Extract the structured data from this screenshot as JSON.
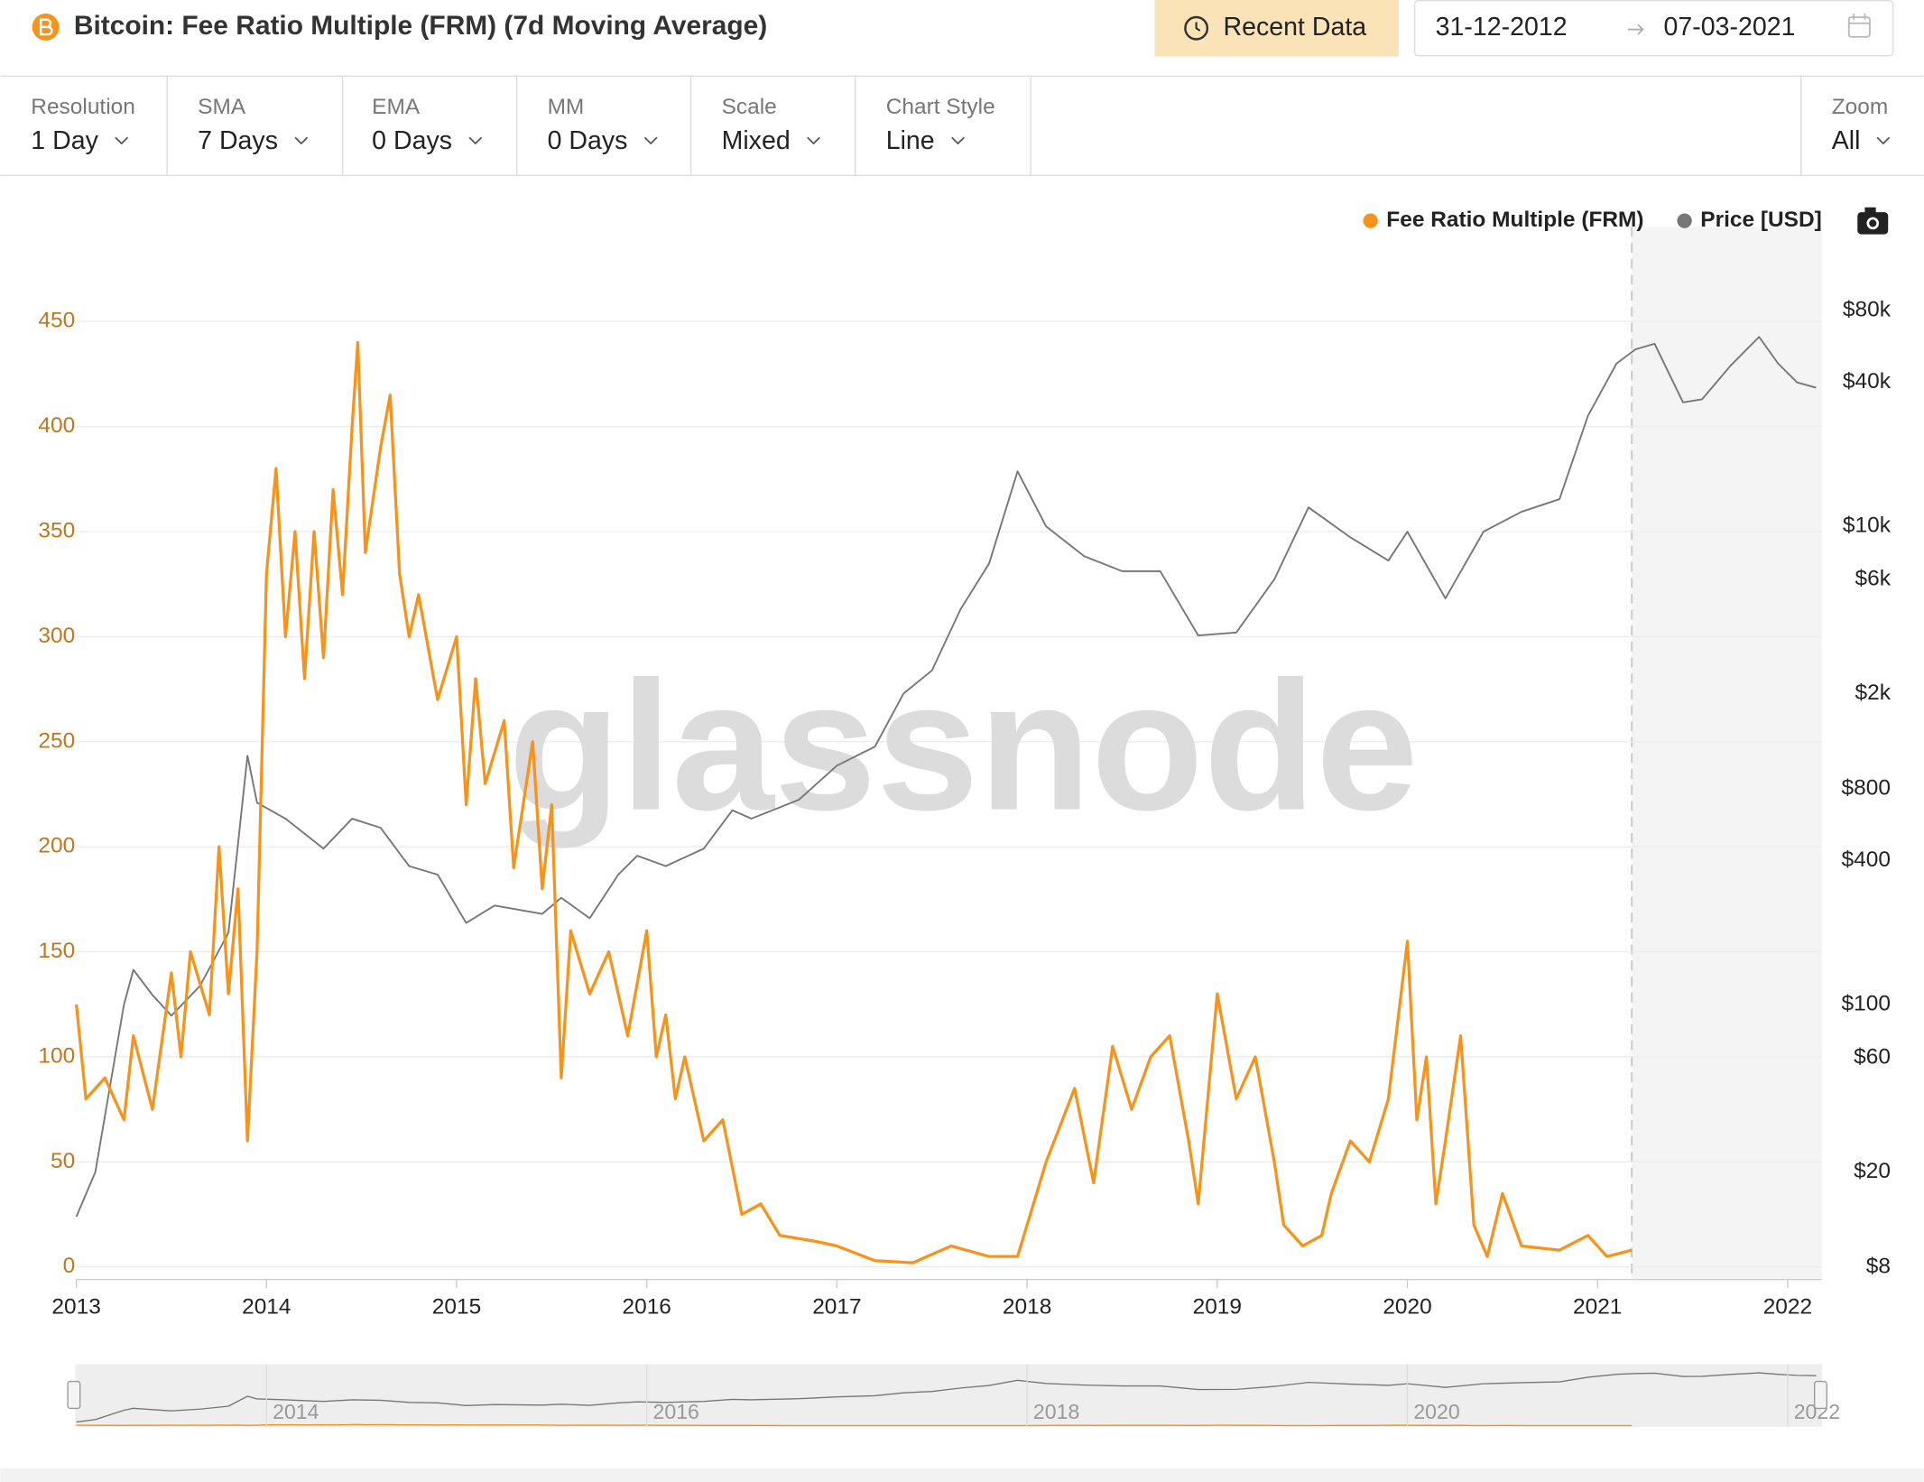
{
  "header": {
    "title": "Bitcoin: Fee Ratio Multiple (FRM) (7d Moving Average)",
    "recent_button": "Recent Data",
    "date_from": "31-12-2012",
    "date_to": "07-03-2021"
  },
  "controls": [
    {
      "label": "Resolution",
      "value": "1 Day"
    },
    {
      "label": "SMA",
      "value": "7 Days"
    },
    {
      "label": "EMA",
      "value": "0 Days"
    },
    {
      "label": "MM",
      "value": "0 Days"
    },
    {
      "label": "Scale",
      "value": "Mixed"
    },
    {
      "label": "Chart Style",
      "value": "Line"
    }
  ],
  "zoom": {
    "label": "Zoom",
    "value": "All"
  },
  "chart_data": {
    "type": "line",
    "watermark": "glassnode",
    "grid": true,
    "legend": "top-right",
    "xlim": [
      2013,
      2022.18
    ],
    "xticks": [
      2013,
      2014,
      2015,
      2016,
      2017,
      2018,
      2019,
      2020,
      2021,
      2022
    ],
    "ylim": [
      -6,
      495
    ],
    "yticks": [
      0,
      50,
      100,
      150,
      200,
      250,
      300,
      350,
      400,
      450
    ],
    "y2lim": [
      7.1,
      178600
    ],
    "y2log": true,
    "y2ticks": [
      {
        "value": 8,
        "label": "$8"
      },
      {
        "value": 20,
        "label": "$20"
      },
      {
        "value": 60,
        "label": "$60"
      },
      {
        "value": 100,
        "label": "$100"
      },
      {
        "value": 400,
        "label": "$400"
      },
      {
        "value": 800,
        "label": "$800"
      },
      {
        "value": 2000,
        "label": "$2k"
      },
      {
        "value": 6000,
        "label": "$6k"
      },
      {
        "value": 10000,
        "label": "$10k"
      },
      {
        "value": 40000,
        "label": "$40k"
      },
      {
        "value": 80000,
        "label": "$80k"
      }
    ],
    "series": [
      {
        "name": "Fee Ratio Multiple (FRM)",
        "color": "#f7931a",
        "x": [
          2013.0,
          2013.05,
          2013.15,
          2013.25,
          2013.3,
          2013.4,
          2013.5,
          2013.55,
          2013.6,
          2013.7,
          2013.75,
          2013.8,
          2013.85,
          2013.9,
          2013.95,
          2014.0,
          2014.05,
          2014.1,
          2014.15,
          2014.2,
          2014.25,
          2014.3,
          2014.35,
          2014.4,
          2014.45,
          2014.48,
          2014.52,
          2014.6,
          2014.65,
          2014.7,
          2014.75,
          2014.8,
          2014.9,
          2015.0,
          2015.05,
          2015.1,
          2015.15,
          2015.25,
          2015.3,
          2015.4,
          2015.45,
          2015.5,
          2015.55,
          2015.6,
          2015.7,
          2015.8,
          2015.9,
          2016.0,
          2016.05,
          2016.1,
          2016.15,
          2016.2,
          2016.3,
          2016.4,
          2016.5,
          2016.6,
          2016.7,
          2016.9,
          2017.0,
          2017.2,
          2017.4,
          2017.6,
          2017.8,
          2017.95,
          2018.1,
          2018.25,
          2018.35,
          2018.45,
          2018.55,
          2018.65,
          2018.75,
          2018.85,
          2018.9,
          2019.0,
          2019.1,
          2019.2,
          2019.3,
          2019.35,
          2019.45,
          2019.55,
          2019.6,
          2019.7,
          2019.8,
          2019.9,
          2020.0,
          2020.05,
          2020.1,
          2020.15,
          2020.2,
          2020.28,
          2020.35,
          2020.42,
          2020.5,
          2020.6,
          2020.8,
          2020.95,
          2021.05,
          2021.18
        ],
        "values": [
          125,
          80,
          90,
          70,
          110,
          75,
          140,
          100,
          150,
          120,
          200,
          130,
          180,
          60,
          150,
          330,
          380,
          300,
          350,
          280,
          350,
          290,
          370,
          320,
          400,
          440,
          340,
          390,
          415,
          330,
          300,
          320,
          270,
          300,
          220,
          280,
          230,
          260,
          190,
          250,
          180,
          220,
          90,
          160,
          130,
          150,
          110,
          160,
          100,
          120,
          80,
          100,
          60,
          70,
          25,
          30,
          15,
          12,
          10,
          3,
          2,
          10,
          5,
          5,
          50,
          85,
          40,
          105,
          75,
          100,
          110,
          60,
          30,
          130,
          80,
          100,
          50,
          20,
          10,
          15,
          35,
          60,
          50,
          80,
          155,
          70,
          100,
          30,
          60,
          110,
          20,
          5,
          35,
          10,
          8,
          15,
          5,
          8
        ]
      },
      {
        "name": "Price [USD]",
        "color": "#777777",
        "axis": "y2",
        "x": [
          2013.0,
          2013.1,
          2013.25,
          2013.3,
          2013.4,
          2013.5,
          2013.65,
          2013.8,
          2013.9,
          2013.95,
          2014.1,
          2014.3,
          2014.45,
          2014.6,
          2014.75,
          2014.9,
          2015.05,
          2015.2,
          2015.45,
          2015.55,
          2015.7,
          2015.85,
          2015.95,
          2016.1,
          2016.3,
          2016.45,
          2016.55,
          2016.8,
          2017.0,
          2017.2,
          2017.35,
          2017.5,
          2017.65,
          2017.8,
          2017.95,
          2018.1,
          2018.3,
          2018.5,
          2018.7,
          2018.9,
          2019.1,
          2019.3,
          2019.48,
          2019.7,
          2019.9,
          2020.0,
          2020.2,
          2020.4,
          2020.6,
          2020.8,
          2020.95,
          2021.1,
          2021.2,
          2021.3,
          2021.45,
          2021.55,
          2021.7,
          2021.85,
          2021.95,
          2022.05,
          2022.15
        ],
        "values": [
          13,
          20,
          100,
          140,
          110,
          90,
          120,
          200,
          1100,
          700,
          600,
          450,
          600,
          550,
          380,
          350,
          220,
          260,
          240,
          280,
          230,
          350,
          420,
          380,
          450,
          650,
          600,
          720,
          1000,
          1200,
          2000,
          2500,
          4500,
          7000,
          17000,
          10000,
          7500,
          6500,
          6500,
          3500,
          3600,
          6000,
          12000,
          9000,
          7200,
          9500,
          5000,
          9500,
          11500,
          13000,
          29000,
          48000,
          55000,
          58000,
          33000,
          34000,
          47000,
          62000,
          48000,
          40000,
          38000
        ]
      }
    ],
    "navigator": {
      "labels": [
        2014,
        2016,
        2018,
        2020,
        2022
      ]
    }
  }
}
